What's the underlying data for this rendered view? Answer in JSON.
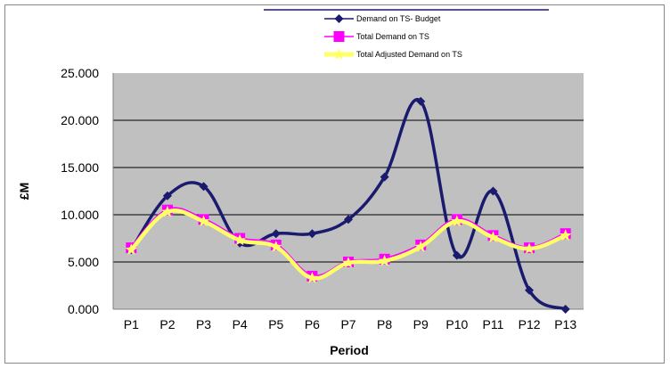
{
  "chart_data": {
    "type": "line",
    "title": "",
    "xlabel": "Period",
    "ylabel": "£M",
    "categories": [
      "P1",
      "P2",
      "P3",
      "P4",
      "P5",
      "P6",
      "P7",
      "P8",
      "P9",
      "P10",
      "P11",
      "P12",
      "P13"
    ],
    "ylim": [
      0,
      25
    ],
    "yticks": [
      {
        "value": 0,
        "label": "0.000"
      },
      {
        "value": 5,
        "label": "5.000"
      },
      {
        "value": 10,
        "label": "10.000"
      },
      {
        "value": 15,
        "label": "15.000"
      },
      {
        "value": 20,
        "label": "20.000"
      },
      {
        "value": 25,
        "label": "25.000"
      }
    ],
    "grid": true,
    "plot_background": "#c0c0c0",
    "legend_position": "top-center",
    "series": [
      {
        "name": "Demand on TS- Budget",
        "color": "#1a1a6e",
        "marker": "diamond",
        "values": [
          6.3,
          12.0,
          13.0,
          7.0,
          8.0,
          8.0,
          9.5,
          14.0,
          22.0,
          5.7,
          12.5,
          2.0,
          0.0
        ]
      },
      {
        "name": "Total Demand on TS",
        "color": "#ff00ff",
        "marker": "square",
        "values": [
          6.5,
          10.5,
          9.5,
          7.5,
          6.8,
          3.5,
          5.0,
          5.3,
          6.8,
          9.5,
          7.8,
          6.5,
          8.0
        ]
      },
      {
        "name": "Total Adjusted Demand on TS",
        "color": "#ffff66",
        "marker": "star",
        "values": [
          6.3,
          10.3,
          9.3,
          7.3,
          6.6,
          3.3,
          4.9,
          5.1,
          6.6,
          9.3,
          7.6,
          6.4,
          7.8
        ]
      }
    ]
  }
}
